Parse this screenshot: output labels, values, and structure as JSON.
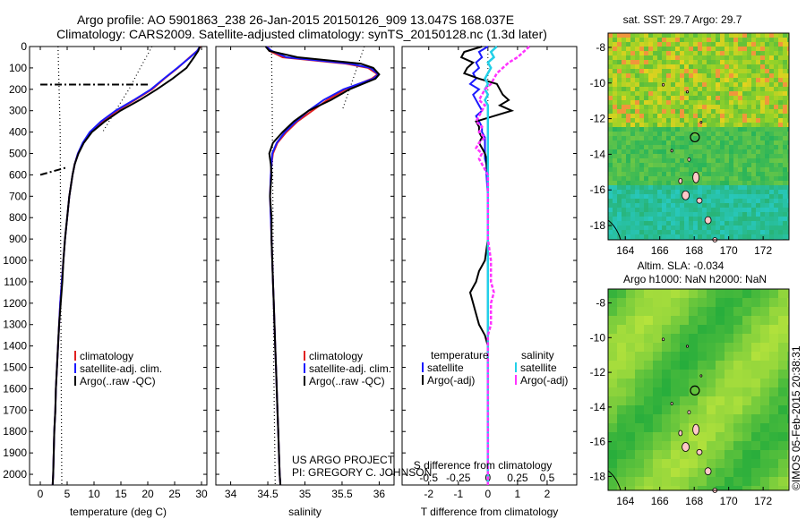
{
  "header": {
    "title_line1": "Argo profile: AO 5901863_238 26-Jan-2015 20150126_909 13.047S 168.037E",
    "title_line2": "Climatology: CARS2009. Satellite-adjusted climatology: synTS_20150128.nc (1.3d later)"
  },
  "credits": {
    "project": "US ARGO PROJECT",
    "pi": "PI: GREGORY C. JOHNSON",
    "imos_stamp": "©IMOS 05-Feb-2015 20:38:31"
  },
  "colors": {
    "climatology": "#e02020",
    "satellite": "#1a1aff",
    "argo": "#000000",
    "salinity_satellite": "#22d0e8",
    "salinity_argo": "#ff33ff"
  },
  "chart_data": [
    {
      "id": "temperature",
      "type": "line",
      "xlabel": "temperature (deg C)",
      "ylabel": "",
      "xlim": [
        -2,
        31
      ],
      "ylim": [
        2050,
        0
      ],
      "xticks": [
        0,
        5,
        10,
        15,
        20,
        25,
        30
      ],
      "yticks": [
        0,
        100,
        200,
        300,
        400,
        500,
        600,
        700,
        800,
        900,
        1000,
        1100,
        1200,
        1300,
        1400,
        1500,
        1600,
        1700,
        1800,
        1900,
        2000
      ],
      "legend": [
        "climatology",
        "satellite-adj. clim.",
        "Argo(..raw -QC)"
      ],
      "depth": [
        0,
        20,
        50,
        100,
        150,
        200,
        250,
        300,
        350,
        400,
        450,
        500,
        550,
        600,
        700,
        800,
        900,
        1000,
        1100,
        1200,
        1300,
        1400,
        1500,
        1600,
        1700,
        1800,
        1900,
        2000,
        2050
      ],
      "series": [
        {
          "name": "climatology",
          "values": [
            29.8,
            29.2,
            27.8,
            25.6,
            23.1,
            20.8,
            17.6,
            14.3,
            11.5,
            9.3,
            8.0,
            7.0,
            6.4,
            6.0,
            5.4,
            5.0,
            4.6,
            4.3,
            4.0,
            3.7,
            3.5,
            3.3,
            3.1,
            2.9,
            2.8,
            2.6,
            2.5,
            2.4,
            2.3
          ]
        },
        {
          "name": "satellite-adj. clim.",
          "values": [
            29.7,
            29.2,
            27.9,
            25.5,
            23.0,
            20.6,
            17.4,
            14.0,
            11.3,
            9.2,
            7.9,
            7.0,
            6.4,
            6.0,
            5.4,
            5.0,
            4.6,
            4.3,
            4.0,
            3.7,
            3.5,
            3.3,
            3.1,
            2.9,
            2.8,
            2.6,
            2.5,
            2.4,
            2.3
          ]
        },
        {
          "name": "Argo(..raw -QC)",
          "values": [
            29.7,
            29.4,
            28.6,
            27.2,
            24.6,
            21.7,
            18.5,
            14.9,
            12.0,
            9.6,
            8.1,
            7.1,
            6.4,
            6.0,
            5.4,
            5.0,
            4.6,
            4.3,
            4.1,
            3.8,
            3.5,
            3.3,
            3.1,
            2.9,
            2.8,
            2.6,
            2.5,
            2.4,
            2.3
          ]
        }
      ],
      "mld": [
        {
          "name": "mixed-layer marker 1",
          "depth": [
            178,
            178
          ],
          "x": [
            0,
            20
          ]
        },
        {
          "name": "mixed-layer marker 2",
          "depth": [
            600,
            565
          ],
          "x": [
            0,
            5
          ]
        }
      ],
      "envelope": {
        "x_left": [
          3.3,
          3.4,
          3.5,
          3.6,
          3.7
        ],
        "x_right": [
          20.8,
          18.6,
          16.5,
          14.0,
          11.6
        ],
        "depth": [
          0,
          100,
          200,
          300,
          400
        ]
      }
    },
    {
      "id": "salinity",
      "type": "line",
      "xlabel": "salinity",
      "ylabel": "",
      "xlim": [
        33.8,
        36.2
      ],
      "ylim": [
        2050,
        0
      ],
      "xticks": [
        34,
        34.5,
        35,
        35.5,
        36
      ],
      "legend": [
        "climatology",
        "satellite-adj. clim.",
        "Argo(..raw -QC)"
      ],
      "depth": [
        0,
        20,
        50,
        80,
        100,
        130,
        150,
        200,
        250,
        300,
        350,
        400,
        450,
        500,
        550,
        600,
        700,
        800,
        900,
        1000,
        1100,
        1200,
        1300,
        1400,
        1500,
        1600,
        1700,
        1800,
        1900,
        2000,
        2050
      ],
      "series": [
        {
          "name": "climatology",
          "values": [
            34.5,
            34.52,
            34.7,
            35.55,
            35.85,
            35.98,
            35.9,
            35.55,
            35.3,
            35.1,
            34.9,
            34.75,
            34.63,
            34.57,
            34.55,
            34.54,
            34.53,
            34.54,
            34.55,
            34.56,
            34.57,
            34.58,
            34.59,
            34.6,
            34.61,
            34.62,
            34.63,
            34.64,
            34.65,
            34.66,
            34.67
          ]
        },
        {
          "name": "satellite-adj. clim.",
          "values": [
            34.48,
            34.55,
            34.75,
            35.6,
            35.88,
            35.99,
            35.92,
            35.52,
            35.25,
            35.05,
            34.88,
            34.73,
            34.62,
            34.56,
            34.55,
            34.54,
            34.53,
            34.54,
            34.55,
            34.56,
            34.57,
            34.58,
            34.59,
            34.6,
            34.61,
            34.62,
            34.63,
            34.64,
            34.65,
            34.66,
            34.67
          ]
        },
        {
          "name": "Argo(..raw -QC)",
          "values": [
            34.47,
            34.52,
            34.9,
            35.75,
            35.92,
            36.0,
            35.95,
            35.6,
            35.35,
            35.05,
            34.85,
            34.7,
            34.57,
            34.52,
            34.54,
            34.55,
            34.53,
            34.55,
            34.55,
            34.56,
            34.57,
            34.58,
            34.59,
            34.6,
            34.61,
            34.62,
            34.63,
            34.64,
            34.65,
            34.66,
            34.67
          ]
        }
      ]
    },
    {
      "id": "difference",
      "type": "line",
      "xlabel": "T difference from climatology",
      "xlabel2": "S difference from climatology",
      "xlim": [
        -2.9,
        3.0
      ],
      "ylim": [
        2050,
        0
      ],
      "xticks": [
        -2,
        -1,
        0,
        1,
        2
      ],
      "xticks_top_labels": [
        "-0.5",
        "-0.25",
        "0",
        "0.25",
        "0.5"
      ],
      "xticks_top_positions": [
        -2,
        -1,
        0,
        1,
        2
      ],
      "legend_temperature_title": "temperature",
      "legend_salinity_title": "salinity",
      "legend": [
        "satellite",
        "Argo(-adj)",
        "satellite",
        "Argo(-adj)"
      ],
      "depth": [
        0,
        25,
        50,
        75,
        100,
        125,
        150,
        175,
        200,
        225,
        250,
        275,
        300,
        325,
        350,
        375,
        400,
        425,
        450,
        475,
        500,
        525,
        550,
        600,
        700,
        800,
        900,
        1000,
        1050,
        1100,
        1150,
        1200,
        1250,
        1300,
        1350,
        1400,
        1500,
        1600,
        1700,
        1800,
        1900,
        2000,
        2050
      ],
      "series": [
        {
          "name": "temperature satellite",
          "values": [
            0.0,
            -0.3,
            -0.2,
            -0.4,
            -0.3,
            -0.5,
            -0.4,
            -0.6,
            -0.3,
            -0.5,
            -0.4,
            -0.3,
            -0.2,
            -0.4,
            -0.3,
            -0.2,
            -0.2,
            -0.1,
            -0.1,
            -0.1,
            -0.1,
            -0.1,
            -0.05,
            -0.05,
            0,
            0,
            0,
            0,
            0,
            0,
            0,
            0,
            0,
            0,
            0,
            0,
            0,
            0,
            0,
            0,
            0,
            0,
            0
          ]
        },
        {
          "name": "temperature Argo(-adj)",
          "values": [
            -0.2,
            -0.8,
            -0.9,
            -0.5,
            -0.7,
            -0.8,
            -0.3,
            0.3,
            0.4,
            0.5,
            0.7,
            0.4,
            0.8,
            0.2,
            -0.4,
            -0.3,
            -0.3,
            -0.2,
            -0.3,
            -0.2,
            -0.1,
            -0.05,
            -0.05,
            0,
            0,
            0,
            0,
            -0.1,
            -0.3,
            -0.4,
            -0.6,
            -0.5,
            -0.4,
            -0.3,
            -0.1,
            0,
            0,
            0,
            0,
            0,
            0,
            0,
            0
          ]
        },
        {
          "name": "salinity satellite",
          "values": [
            0.3,
            0.1,
            0.2,
            0.0,
            0.1,
            0.0,
            -0.1,
            0.0,
            -0.1,
            0.0,
            -0.1,
            0.0,
            0.0,
            0.0,
            0.0,
            0.0,
            0.0,
            0.0,
            0.0,
            0.0,
            0.0,
            0.0,
            0.0,
            0.0,
            0.0,
            0.0,
            0.0,
            0.0,
            0.0,
            0.0,
            0.0,
            0.0,
            0.0,
            0.0,
            0.0,
            0.0,
            0.0,
            0.0,
            0.0,
            0.0,
            0.0,
            0.0,
            0.0
          ]
        },
        {
          "name": "salinity Argo(-adj)",
          "values": [
            1.4,
            1.2,
            1.0,
            0.7,
            0.5,
            0.3,
            0.2,
            0.1,
            -0.1,
            -0.2,
            -0.3,
            -0.1,
            -0.2,
            -0.3,
            -0.4,
            -0.2,
            -0.3,
            -0.1,
            -0.3,
            -0.4,
            -0.2,
            -0.3,
            -0.2,
            0.0,
            0.0,
            0.0,
            0.0,
            0.1,
            0.1,
            0.1,
            0.2,
            0.1,
            0.1,
            0.1,
            0.0,
            0.0,
            0.0,
            0.0,
            0.0,
            0.0,
            0.0,
            0.0,
            0.0
          ]
        }
      ]
    },
    {
      "id": "sst-map",
      "type": "heatmap",
      "title": "sat. SST: 29.7  Argo: 29.7",
      "xlim": [
        163,
        173.5
      ],
      "ylim": [
        -18.8,
        -7.2
      ],
      "xticks": [
        164,
        166,
        168,
        170,
        172
      ],
      "yticks": [
        -8,
        -10,
        -12,
        -14,
        -16,
        -18
      ],
      "argo_position": {
        "lon": 168.037,
        "lat": -13.047
      }
    },
    {
      "id": "sla-map",
      "type": "heatmap",
      "title_line1": "Altim. SLA: -0.034",
      "title_line2": "Argo h1000: NaN h2000: NaN",
      "xlim": [
        163,
        173.5
      ],
      "ylim": [
        -18.8,
        -7.2
      ],
      "xticks": [
        164,
        166,
        168,
        170,
        172
      ],
      "yticks": [
        -8,
        -10,
        -12,
        -14,
        -16,
        -18
      ],
      "argo_position": {
        "lon": 168.037,
        "lat": -13.047
      }
    }
  ]
}
